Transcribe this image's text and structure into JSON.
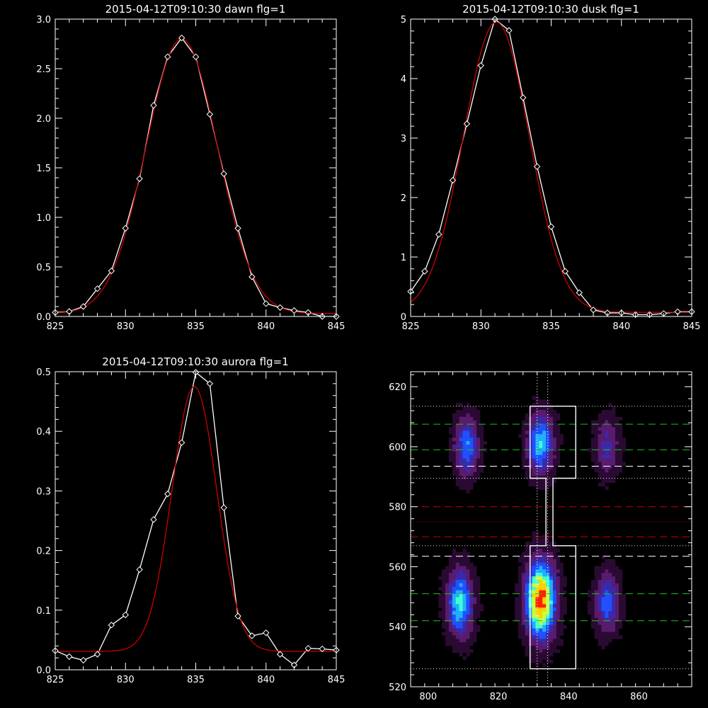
{
  "chart_data": [
    {
      "type": "line",
      "title": "2015-04-12T09:10:30 dawn flg=1",
      "xlabel": "",
      "ylabel": "",
      "xlim": [
        825,
        845
      ],
      "ylim": [
        0,
        3.0
      ],
      "xticks": [
        "825",
        "830",
        "835",
        "840",
        "845"
      ],
      "yticks": [
        "0.0",
        "0.5",
        "1.0",
        "1.5",
        "2.0",
        "2.5",
        "3.0"
      ],
      "colors": {
        "measured": "#ffffff",
        "fit": "#cc0000"
      },
      "series": [
        {
          "x": [
            825,
            826,
            827,
            828,
            829,
            830,
            831,
            832,
            833,
            834,
            835,
            836,
            837,
            838,
            839,
            840,
            841,
            842,
            843,
            844,
            845
          ],
          "y": [
            0.04,
            0.05,
            0.1,
            0.28,
            0.46,
            0.89,
            1.39,
            2.13,
            2.62,
            2.81,
            2.62,
            2.04,
            1.44,
            0.89,
            0.4,
            0.13,
            0.09,
            0.06,
            0.04,
            0.0,
            0.0
          ],
          "markers": "diamond"
        },
        {
          "fit": "gaussian",
          "x0": 834.0,
          "amp": 2.77,
          "sigma": 2.55,
          "offset": 0.03,
          "x_range": [
            825,
            845
          ]
        }
      ]
    },
    {
      "type": "line",
      "title": "2015-04-12T09:10:30 dusk flg=1",
      "xlabel": "",
      "ylabel": "",
      "xlim": [
        825,
        845
      ],
      "ylim": [
        0,
        5
      ],
      "xticks": [
        "825",
        "830",
        "835",
        "840",
        "845"
      ],
      "yticks": [
        "0",
        "1",
        "2",
        "3",
        "4",
        "5"
      ],
      "colors": {
        "measured": "#ffffff",
        "fit": "#cc0000"
      },
      "series": [
        {
          "x": [
            825,
            826,
            827,
            828,
            829,
            830,
            831,
            832,
            833,
            834,
            835,
            836,
            837,
            838,
            839,
            840,
            841,
            842,
            843,
            844,
            845
          ],
          "y": [
            0.42,
            0.76,
            1.38,
            2.29,
            3.24,
            4.22,
            5.0,
            4.81,
            3.68,
            2.52,
            1.51,
            0.76,
            0.4,
            0.11,
            0.06,
            0.06,
            0.03,
            0.03,
            0.05,
            0.08,
            0.08
          ],
          "markers": "diamond"
        },
        {
          "fit": "gaussian",
          "x0": 831.1,
          "amp": 4.88,
          "sigma": 2.35,
          "offset": 0.07,
          "x_range": [
            825,
            845
          ]
        }
      ]
    },
    {
      "type": "line",
      "title": "2015-04-12T09:10:30 aurora flg=1",
      "xlabel": "",
      "ylabel": "",
      "xlim": [
        825,
        845
      ],
      "ylim": [
        0,
        0.5
      ],
      "xticks": [
        "825",
        "830",
        "835",
        "840",
        "845"
      ],
      "yticks": [
        "0.0",
        "0.1",
        "0.2",
        "0.3",
        "0.4",
        "0.5"
      ],
      "colors": {
        "measured": "#ffffff",
        "fit": "#cc0000"
      },
      "series": [
        {
          "x": [
            825,
            826,
            827,
            828,
            829,
            830,
            831,
            832,
            833,
            834,
            835,
            836,
            837,
            838,
            839,
            840,
            841,
            842,
            843,
            844,
            845
          ],
          "y": [
            0.032,
            0.022,
            0.016,
            0.026,
            0.075,
            0.092,
            0.168,
            0.252,
            0.295,
            0.381,
            0.499,
            0.48,
            0.272,
            0.09,
            0.057,
            0.062,
            0.026,
            0.008,
            0.036,
            0.035,
            0.033
          ],
          "markers": "diamond"
        },
        {
          "fit": "gaussian",
          "x0": 834.9,
          "amp": 0.444,
          "sigma": 1.6,
          "offset": 0.031,
          "x_range": [
            825,
            845
          ]
        }
      ]
    },
    {
      "type": "heatmap",
      "title": "",
      "xlabel": "",
      "ylabel": "",
      "xlim": [
        795,
        875
      ],
      "ylim": [
        520,
        625
      ],
      "xticks": [
        "800",
        "820",
        "840",
        "860"
      ],
      "yticks": [
        "520",
        "540",
        "560",
        "580",
        "600",
        "620"
      ],
      "colormap": [
        "#000000",
        "#2a0a32",
        "#5a1a6e",
        "#3a2aa8",
        "#2050ff",
        "#20b0ff",
        "#40ffd0",
        "#c8ff40",
        "#ffd000",
        "#ff2000"
      ],
      "blobs": [
        {
          "x": 809,
          "y": 548,
          "sx": 2.6,
          "sy": 8,
          "amp": 0.62
        },
        {
          "x": 832,
          "y": 549,
          "sx": 3.0,
          "sy": 9,
          "amp": 1.0
        },
        {
          "x": 851,
          "y": 548,
          "sx": 2.5,
          "sy": 7,
          "amp": 0.45
        },
        {
          "x": 811,
          "y": 600,
          "sx": 2.4,
          "sy": 7,
          "amp": 0.5
        },
        {
          "x": 832,
          "y": 601,
          "sx": 2.6,
          "sy": 7,
          "amp": 0.6
        },
        {
          "x": 851,
          "y": 600,
          "sx": 2.5,
          "sy": 7,
          "amp": 0.32
        }
      ],
      "hlines": [
        {
          "y": 613.5,
          "style": "dotted",
          "color": "#e8e8e8"
        },
        {
          "y": 607.5,
          "style": "dashed",
          "color": "#20c020"
        },
        {
          "y": 599,
          "style": "dashed",
          "color": "#20c020"
        },
        {
          "y": 593.5,
          "style": "dashed",
          "color": "#ffffff"
        },
        {
          "y": 589.5,
          "style": "dotted",
          "color": "#e8e8e8"
        },
        {
          "y": 580,
          "style": "dashed",
          "color": "#cc0000"
        },
        {
          "y": 575,
          "style": "dotted",
          "color": "#cc0000"
        },
        {
          "y": 570,
          "style": "dashed",
          "color": "#cc0000"
        },
        {
          "y": 567,
          "style": "dotted",
          "color": "#e8e8e8"
        },
        {
          "y": 563.5,
          "style": "dashed",
          "color": "#ffffff"
        },
        {
          "y": 551,
          "style": "dashed",
          "color": "#20c020"
        },
        {
          "y": 542,
          "style": "dashed",
          "color": "#20c020"
        },
        {
          "y": 526,
          "style": "dotted",
          "color": "#e8e8e8"
        }
      ],
      "vlines": [
        {
          "x": 831,
          "style": "dotted",
          "color": "#ffffff"
        },
        {
          "x": 834,
          "style": "dotted",
          "color": "#ffffff"
        }
      ],
      "outline": {
        "color": "#ffffff",
        "points": [
          [
            829,
            526
          ],
          [
            842,
            526
          ],
          [
            842,
            567
          ],
          [
            835.5,
            567
          ],
          [
            835.5,
            589.5
          ],
          [
            842,
            589.5
          ],
          [
            842,
            613.5
          ],
          [
            829,
            613.5
          ],
          [
            829,
            589.5
          ],
          [
            833.5,
            589.5
          ],
          [
            833.5,
            567
          ],
          [
            829,
            567
          ]
        ]
      }
    }
  ]
}
